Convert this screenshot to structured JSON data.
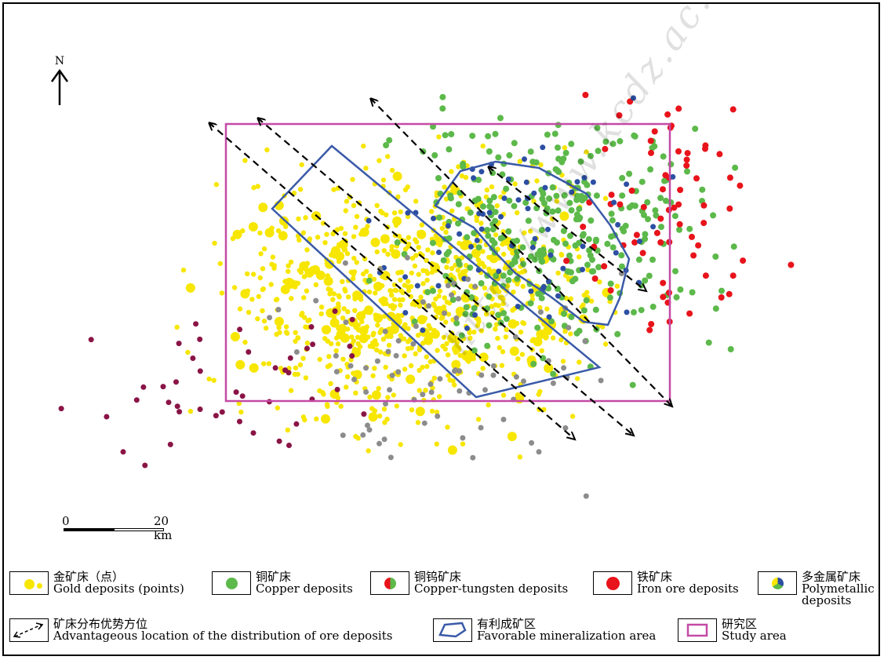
{
  "north_label": "N",
  "scale": {
    "start": "0",
    "end": "20 km"
  },
  "watermark": "http://www.kcdz.ac.cn/",
  "colors": {
    "gold": "#f7e600",
    "copper": "#5cb94a",
    "iron": "#e8131b",
    "polymetallic": "#2d4fa3",
    "grey": "#8c8c8c",
    "maroon": "#8a1446",
    "study_area": "#c44aa6",
    "favorable": "#3a5aa8",
    "arrow": "#000000"
  },
  "legend": [
    {
      "cn": "金矿床（点）",
      "en": "Gold deposits (points)",
      "icon": "gold-dots"
    },
    {
      "cn": "铜矿床",
      "en": "Copper  deposits",
      "icon": "copper-dot"
    },
    {
      "cn": "铜钨矿床",
      "en": "Copper-tungsten  deposits",
      "icon": "copper-tungsten-pie"
    },
    {
      "cn": "铁矿床",
      "en": "Iron  ore  deposits",
      "icon": "iron-dot"
    },
    {
      "cn": "多金属矿床",
      "en": "Polymetallic deposits",
      "icon": "polymetallic-pie"
    },
    {
      "cn": "矿床分布优势方位",
      "en": "Advantageous  location  of  the  distribution  of  ore  deposits",
      "icon": "dashed-arrow"
    },
    {
      "cn": "有利成矿区",
      "en": "Favorable  mineralization  area",
      "icon": "favorable-polygon"
    },
    {
      "cn": "研究区",
      "en": "Study  area",
      "icon": "study-area-rect"
    }
  ]
}
